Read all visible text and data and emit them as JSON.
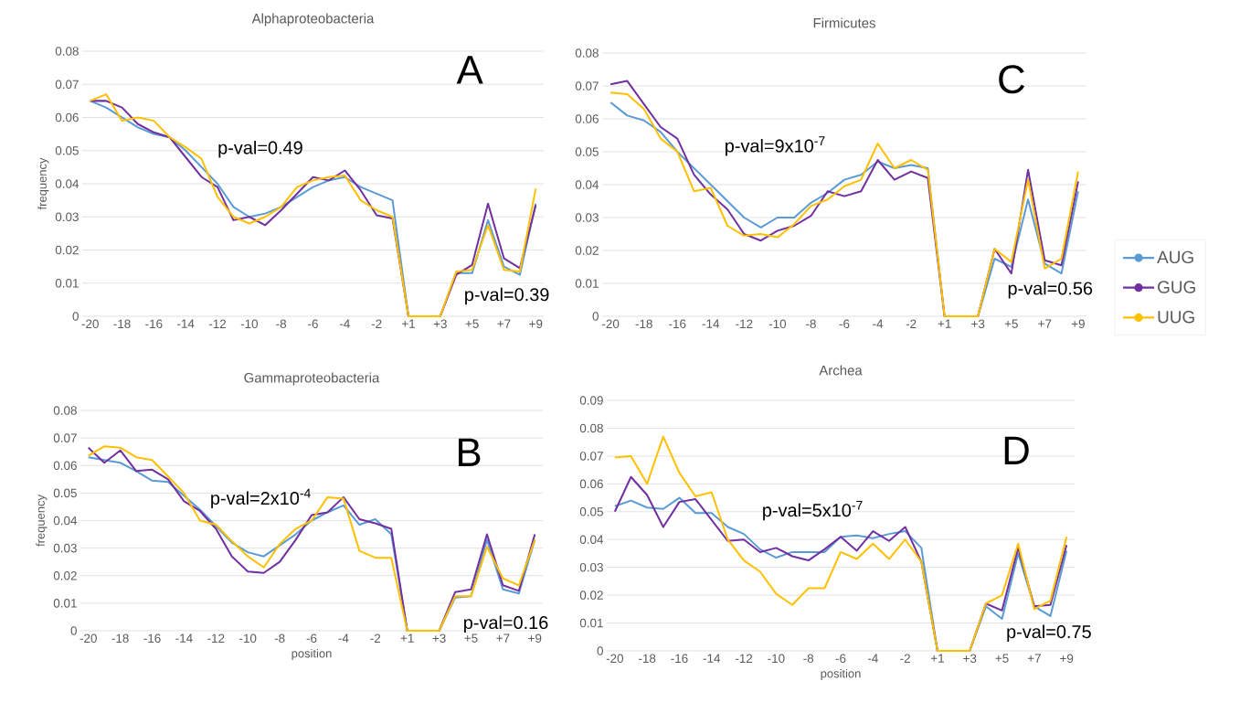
{
  "chart_data": [
    {
      "type": "line",
      "title": "Alphaproteobacteria",
      "ylabel": "frequency",
      "categories": [
        "-20",
        null,
        "-18",
        null,
        "-16",
        null,
        "-14",
        null,
        "-12",
        null,
        "-10",
        null,
        "-8",
        null,
        "-6",
        null,
        "-4",
        null,
        "-2",
        null,
        "+1",
        null,
        "+3",
        null,
        "+5",
        null,
        "+7",
        null,
        "+9"
      ],
      "ylim": [
        0,
        0.08
      ],
      "yticks": [
        0,
        0.01,
        0.02,
        0.03,
        0.04,
        0.05,
        0.06,
        0.07,
        0.08
      ],
      "grid": "y",
      "annotations": [
        "A",
        "p-val=0.49",
        "p-val=0.39"
      ],
      "series": [
        {
          "color": "#5b9bd5",
          "values": [
            0.065,
            0.063,
            0.06,
            0.057,
            0.055,
            0.054,
            0.05,
            0.045,
            0.04,
            0.033,
            0.03,
            0.031,
            0.033,
            0.036,
            0.039,
            0.041,
            0.042,
            0.039,
            0.037,
            0.035,
            0,
            0,
            0,
            0.013,
            0.013,
            0.029,
            0.015,
            0.0125,
            0.034
          ]
        },
        {
          "color": "#7030a0",
          "values": [
            0.065,
            0.065,
            0.063,
            0.058,
            0.0555,
            0.054,
            0.048,
            0.042,
            0.039,
            0.029,
            0.03,
            0.0275,
            0.032,
            0.037,
            0.042,
            0.041,
            0.044,
            0.038,
            0.0305,
            0.0295,
            0,
            0,
            0,
            0.0125,
            0.0155,
            0.034,
            0.0175,
            0.0145,
            0.0335
          ]
        },
        {
          "color": "#ffc000",
          "values": [
            0.065,
            0.067,
            0.059,
            0.06,
            0.059,
            0.054,
            0.051,
            0.0475,
            0.036,
            0.03,
            0.028,
            0.03,
            0.033,
            0.039,
            0.041,
            0.042,
            0.0425,
            0.035,
            0.032,
            0.03,
            0,
            0,
            0,
            0.0135,
            0.014,
            0.0275,
            0.014,
            0.0135,
            0.0385
          ]
        }
      ]
    },
    {
      "type": "line",
      "title": "Firmicutes",
      "legend": "right",
      "categories": [
        "-20",
        null,
        "-18",
        null,
        "-16",
        null,
        "-14",
        null,
        "-12",
        null,
        "-10",
        null,
        "-8",
        null,
        "-6",
        null,
        "-4",
        null,
        "-2",
        null,
        "+1",
        null,
        "+3",
        null,
        "+5",
        null,
        "+7",
        null,
        "+9"
      ],
      "ylim": [
        0,
        0.08
      ],
      "yticks": [
        0,
        0.01,
        0.02,
        0.03,
        0.04,
        0.05,
        0.06,
        0.07,
        0.08
      ],
      "grid": "y",
      "annotations": [
        "C",
        "p-val=9x10$^{-7}$",
        "p-val=0.56"
      ],
      "series": [
        {
          "name": "AUG",
          "color": "#5b9bd5",
          "values": [
            0.065,
            0.061,
            0.0595,
            0.056,
            0.05,
            0.045,
            0.04,
            0.035,
            0.03,
            0.027,
            0.03,
            0.03,
            0.0345,
            0.0375,
            0.0415,
            0.043,
            0.047,
            0.045,
            0.046,
            0.045,
            0,
            0,
            0,
            0.0175,
            0.015,
            0.0355,
            0.016,
            0.013,
            0.038
          ]
        },
        {
          "name": "GUG",
          "color": "#7030a0",
          "values": [
            0.0705,
            0.0715,
            0.0645,
            0.0575,
            0.054,
            0.043,
            0.037,
            0.0325,
            0.025,
            0.023,
            0.026,
            0.0275,
            0.0305,
            0.038,
            0.0365,
            0.038,
            0.0475,
            0.0415,
            0.044,
            0.042,
            0,
            0,
            0,
            0.0205,
            0.013,
            0.0445,
            0.017,
            0.0155,
            0.041
          ]
        },
        {
          "name": "UUG",
          "color": "#ffc000",
          "values": [
            0.068,
            0.0675,
            0.063,
            0.054,
            0.05,
            0.038,
            0.039,
            0.0275,
            0.0245,
            0.025,
            0.024,
            0.028,
            0.0335,
            0.0355,
            0.0395,
            0.0415,
            0.0525,
            0.045,
            0.0475,
            0.0445,
            0,
            0,
            0,
            0.0205,
            0.0165,
            0.0415,
            0.0145,
            0.0175,
            0.044
          ]
        }
      ]
    },
    {
      "type": "line",
      "title": "Gammaproteobacteria",
      "xlabel": "position",
      "ylabel": "frequency",
      "categories": [
        "-20",
        null,
        "-18",
        null,
        "-16",
        null,
        "-14",
        null,
        "-12",
        null,
        "-10",
        null,
        "-8",
        null,
        "-6",
        null,
        "-4",
        null,
        "-2",
        null,
        "+1",
        null,
        "+3",
        null,
        "+5",
        null,
        "+7",
        null,
        "+9"
      ],
      "ylim": [
        0,
        0.08
      ],
      "yticks": [
        0,
        0.01,
        0.02,
        0.03,
        0.04,
        0.05,
        0.06,
        0.07,
        0.08
      ],
      "grid": "y",
      "annotations": [
        "B",
        "p-val=2x10$^{-4}$",
        "p-val=0.16"
      ],
      "series": [
        {
          "color": "#5b9bd5",
          "values": [
            0.063,
            0.062,
            0.061,
            0.058,
            0.0545,
            0.054,
            0.049,
            0.044,
            0.038,
            0.032,
            0.0285,
            0.027,
            0.031,
            0.035,
            0.04,
            0.043,
            0.0455,
            0.0385,
            0.0405,
            0.035,
            0,
            0,
            0,
            0.012,
            0.0125,
            0.033,
            0.015,
            0.0135,
            0.033
          ]
        },
        {
          "color": "#7030a0",
          "values": [
            0.0665,
            0.061,
            0.0655,
            0.058,
            0.0585,
            0.055,
            0.047,
            0.0435,
            0.037,
            0.027,
            0.0215,
            0.021,
            0.025,
            0.033,
            0.042,
            0.043,
            0.0485,
            0.0405,
            0.039,
            0.037,
            0,
            0,
            0,
            0.014,
            0.015,
            0.035,
            0.0165,
            0.0145,
            0.035
          ]
        },
        {
          "color": "#ffc000",
          "values": [
            0.0635,
            0.067,
            0.0665,
            0.063,
            0.062,
            0.056,
            0.05,
            0.04,
            0.0385,
            0.0325,
            0.027,
            0.023,
            0.0315,
            0.037,
            0.04,
            0.0485,
            0.048,
            0.029,
            0.0265,
            0.0265,
            0,
            0,
            0,
            0.0125,
            0.0125,
            0.0305,
            0.019,
            0.0165,
            0.033
          ]
        }
      ]
    },
    {
      "type": "line",
      "title": "Archea",
      "xlabel": "position",
      "categories": [
        "-20",
        null,
        "-18",
        null,
        "-16",
        null,
        "-14",
        null,
        "-12",
        null,
        "-10",
        null,
        "-8",
        null,
        "-6",
        null,
        "-4",
        null,
        "-2",
        null,
        "+1",
        null,
        "+3",
        null,
        "+5",
        null,
        "+7",
        null,
        "+9"
      ],
      "ylim": [
        0,
        0.09
      ],
      "yticks": [
        0,
        0.01,
        0.02,
        0.03,
        0.04,
        0.05,
        0.06,
        0.07,
        0.08,
        0.09
      ],
      "grid": "y",
      "annotations": [
        "D",
        "p-val=5x10$^{-7}$",
        "p-val=0.75"
      ],
      "series": [
        {
          "color": "#5b9bd5",
          "values": [
            0.052,
            0.054,
            0.0515,
            0.051,
            0.055,
            0.0495,
            0.0495,
            0.0445,
            0.042,
            0.0365,
            0.0335,
            0.0355,
            0.0355,
            0.0355,
            0.041,
            0.0415,
            0.0405,
            0.042,
            0.043,
            0.037,
            0,
            0,
            0,
            0.016,
            0.0115,
            0.035,
            0.016,
            0.0125,
            0.036
          ]
        },
        {
          "color": "#7030a0",
          "values": [
            0.05,
            0.0625,
            0.056,
            0.0445,
            0.0535,
            0.0545,
            0.047,
            0.0395,
            0.04,
            0.0355,
            0.037,
            0.034,
            0.0325,
            0.0365,
            0.041,
            0.036,
            0.043,
            0.0395,
            0.0445,
            0.032,
            0,
            0,
            0,
            0.017,
            0.0145,
            0.037,
            0.016,
            0.0165,
            0.038
          ]
        },
        {
          "color": "#ffc000",
          "values": [
            0.0695,
            0.07,
            0.06,
            0.077,
            0.064,
            0.0555,
            0.057,
            0.04,
            0.0325,
            0.0285,
            0.0205,
            0.0165,
            0.0225,
            0.0225,
            0.0355,
            0.033,
            0.0385,
            0.033,
            0.04,
            0.032,
            0,
            0,
            0,
            0.017,
            0.02,
            0.0385,
            0.015,
            0.018,
            0.041
          ]
        }
      ]
    }
  ]
}
